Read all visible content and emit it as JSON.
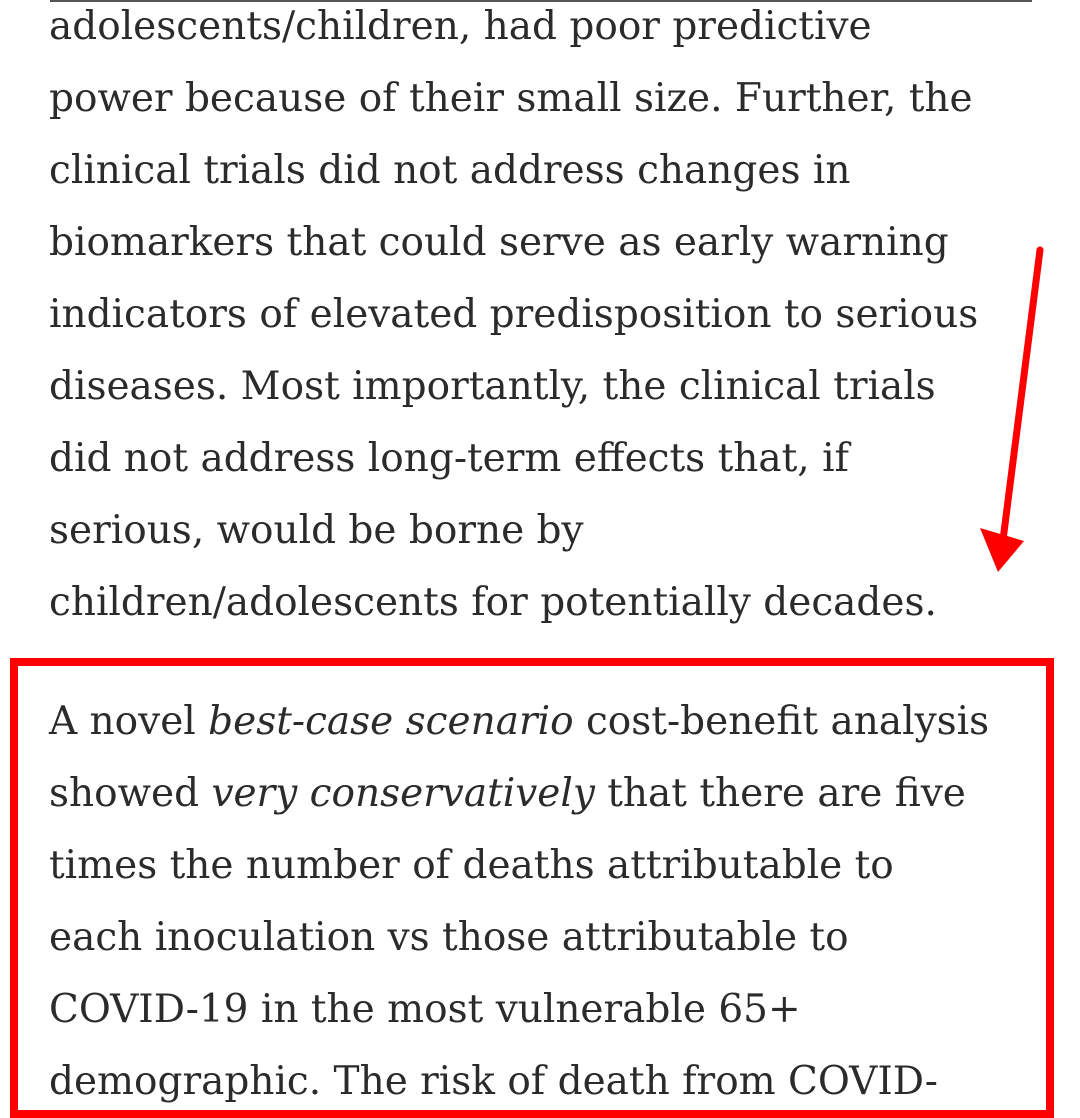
{
  "colors": {
    "text": "#2b2b2b",
    "annotation": "#ff0000",
    "background": "#ffffff"
  },
  "icons": {
    "arrow": "down-arrow-icon"
  },
  "paragraph_1": {
    "lines": [
      "adolescents/children, had poor predictive",
      "power because of their small size. Further, the",
      "clinical trials did not address changes in",
      "biomarkers that could serve as early warning",
      "indicators of elevated predisposition to serious",
      "diseases. Most importantly, the clinical trials",
      "did not address long-term effects that, if",
      "serious, would be borne by",
      "children/adolescents for potentially decades."
    ]
  },
  "paragraph_2": {
    "line_1_before": "A novel ",
    "line_1_em": "best-case scenario",
    "line_1_after": " cost-benefit analysis",
    "line_2_before": "showed ",
    "line_2_em": "very conservatively",
    "line_2_after": " that there are five",
    "lines_rest": [
      "times the number of deaths attributable to",
      "each inoculation vs those attributable to",
      "COVID-19 in the most vulnerable 65+",
      "demographic. The risk of death from COVID-"
    ]
  }
}
